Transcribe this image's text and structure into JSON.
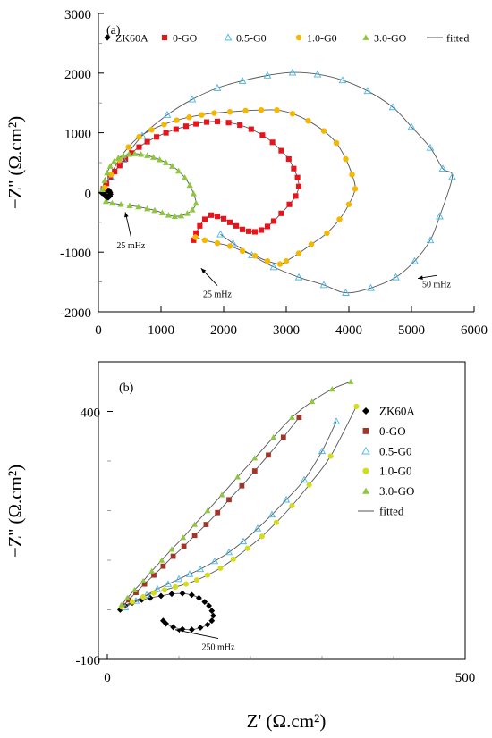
{
  "chart_data": [
    {
      "panel_label": "(a)",
      "type": "scatter",
      "xlabel": "",
      "ylabel": "−Z'' (Ω.cm²)",
      "xlim": [
        0,
        6000
      ],
      "ylim": [
        -2000,
        3000
      ],
      "x_ticks": [
        0,
        1000,
        2000,
        3000,
        4000,
        5000,
        6000
      ],
      "x_tick_labels": [
        "0",
        "1000",
        "2000",
        "3000",
        "4000",
        "5000",
        "6000"
      ],
      "y_ticks": [
        -2000,
        -1000,
        0,
        1000,
        2000,
        3000
      ],
      "y_tick_labels": [
        "-2000",
        "-1000",
        "0",
        "1000",
        "2000",
        "3000"
      ],
      "grid": false,
      "legend_position": "top",
      "legend": [
        {
          "label": "ZK60A",
          "marker": "diamond",
          "color": "#000000"
        },
        {
          "label": "0-GO",
          "marker": "square",
          "color": "#e8141c"
        },
        {
          "label": "0.5-G0",
          "marker": "triangle-open",
          "color": "#49b6e6"
        },
        {
          "label": "1.0-G0",
          "marker": "circle",
          "color": "#f5b800"
        },
        {
          "label": "3.0-GO",
          "marker": "triangle",
          "color": "#8dc63f"
        },
        {
          "label": "fitted",
          "marker": "line",
          "color": "#555555"
        }
      ],
      "annotations": [
        {
          "text": "25 mHz",
          "x": 520,
          "y": -800,
          "arrow_to": [
            430,
            -330
          ]
        },
        {
          "text": "25 mHz",
          "x": 1900,
          "y": -1620,
          "arrow_to": [
            1640,
            -1270
          ]
        },
        {
          "text": "50 mHz",
          "x": 5400,
          "y": -1450,
          "arrow_to": [
            5100,
            -1440
          ]
        }
      ],
      "series": [
        {
          "name": "ZK60A",
          "marker": "diamond",
          "color": "#000000",
          "x": [
            60,
            100,
            140,
            170,
            185,
            190,
            180,
            160,
            140,
            120,
            105,
            90
          ],
          "y": [
            -10,
            20,
            40,
            30,
            0,
            -30,
            -60,
            -80,
            -90,
            -70,
            -40,
            -20
          ]
        },
        {
          "name": "0-GO",
          "marker": "square",
          "color": "#e8141c",
          "x": [
            80,
            130,
            190,
            260,
            340,
            430,
            530,
            650,
            780,
            930,
            1080,
            1240,
            1400,
            1560,
            1730,
            1900,
            2080,
            2260,
            2440,
            2620,
            2780,
            2920,
            3040,
            3120,
            3180,
            3200,
            3150,
            3050,
            2920,
            2800,
            2700,
            2600,
            2500,
            2400,
            2300,
            2200,
            2100,
            2000,
            1900,
            1800,
            1700,
            1620,
            1560,
            1520
          ],
          "y": [
            60,
            150,
            250,
            350,
            450,
            560,
            660,
            760,
            850,
            930,
            1000,
            1060,
            1110,
            1150,
            1180,
            1190,
            1170,
            1130,
            1060,
            960,
            840,
            700,
            560,
            400,
            250,
            100,
            -60,
            -200,
            -350,
            -480,
            -570,
            -630,
            -660,
            -650,
            -620,
            -560,
            -500,
            -440,
            -400,
            -380,
            -450,
            -560,
            -680,
            -800
          ]
        },
        {
          "name": "0.5-G0",
          "marker": "triangle-open",
          "color": "#49b6e6",
          "x": [
            200,
            400,
            700,
            1100,
            1500,
            1900,
            2300,
            2700,
            3100,
            3500,
            3900,
            4300,
            4700,
            5000,
            5300,
            5500,
            5650,
            5450,
            5300,
            5050,
            4750,
            4350,
            3950,
            3600,
            3200,
            2800,
            2450,
            2150,
            1950
          ],
          "y": [
            250,
            550,
            950,
            1300,
            1560,
            1750,
            1870,
            1960,
            2010,
            1980,
            1880,
            1700,
            1430,
            1100,
            750,
            400,
            260,
            -400,
            -800,
            -1150,
            -1420,
            -1600,
            -1680,
            -1550,
            -1420,
            -1250,
            -1050,
            -850,
            -700
          ]
        },
        {
          "name": "1.0-G0",
          "marker": "circle",
          "color": "#f5b800",
          "x": [
            100,
            200,
            330,
            480,
            650,
            850,
            1050,
            1250,
            1450,
            1650,
            1850,
            2100,
            2350,
            2600,
            2850,
            3100,
            3350,
            3600,
            3800,
            3950,
            4050,
            4100,
            4000,
            3850,
            3650,
            3400,
            3200,
            3000,
            2900,
            2700,
            2500,
            2300,
            2100,
            1900,
            1700,
            1550
          ],
          "y": [
            80,
            300,
            550,
            760,
            930,
            1050,
            1140,
            1210,
            1260,
            1300,
            1330,
            1350,
            1370,
            1380,
            1380,
            1320,
            1200,
            1030,
            830,
            560,
            300,
            60,
            -200,
            -450,
            -680,
            -870,
            -1020,
            -1150,
            -1200,
            -1150,
            -1060,
            -980,
            -900,
            -850,
            -800,
            -750
          ]
        },
        {
          "name": "3.0-GO",
          "marker": "triangle",
          "color": "#8dc63f",
          "x": [
            60,
            100,
            140,
            190,
            250,
            320,
            400,
            490,
            580,
            680,
            780,
            880,
            980,
            1080,
            1180,
            1280,
            1380,
            1460,
            1520,
            1560,
            1500,
            1420,
            1320,
            1220,
            1120,
            1020,
            900,
            780,
            640,
            500,
            360,
            220,
            120
          ],
          "y": [
            50,
            200,
            330,
            440,
            520,
            580,
            620,
            640,
            650,
            640,
            620,
            590,
            550,
            500,
            440,
            360,
            250,
            120,
            -20,
            -180,
            -290,
            -350,
            -390,
            -400,
            -380,
            -340,
            -300,
            -270,
            -240,
            -220,
            -200,
            -180,
            -150
          ]
        }
      ]
    },
    {
      "panel_label": "(b)",
      "type": "scatter",
      "xlabel": "Z' (Ω.cm²)",
      "ylabel": "−Z'' (Ω.cm²)",
      "xlim": [
        0,
        500
      ],
      "ylim": [
        -100,
        500
      ],
      "x_ticks": [
        0,
        500
      ],
      "x_tick_labels": [
        "0",
        "500"
      ],
      "y_ticks": [
        -100,
        400
      ],
      "y_tick_labels": [
        "-100",
        "400"
      ],
      "grid": false,
      "legend_position": "right",
      "legend": [
        {
          "label": "ZK60A",
          "marker": "diamond",
          "color": "#000000"
        },
        {
          "label": "0-GO",
          "marker": "square",
          "color": "#a0362a"
        },
        {
          "label": "0.5-G0",
          "marker": "triangle-open",
          "color": "#49b6e6"
        },
        {
          "label": "1.0-G0",
          "marker": "circle",
          "color": "#d4dc1c"
        },
        {
          "label": "3.0-GO",
          "marker": "triangle",
          "color": "#8dc63f"
        },
        {
          "label": "fitted",
          "marker": "line",
          "color": "#555555"
        }
      ],
      "annotations": [
        {
          "text": "250 mHz",
          "x": 155,
          "y": -65,
          "arrow_to": [
            95,
            -40
          ]
        }
      ],
      "series": [
        {
          "name": "ZK60A",
          "marker": "diamond",
          "color": "#000000",
          "x": [
            18,
            25,
            35,
            48,
            60,
            75,
            90,
            105,
            118,
            128,
            136,
            142,
            146,
            148,
            146,
            140,
            130,
            118,
            105,
            92,
            82,
            78
          ],
          "y": [
            0,
            8,
            14,
            20,
            24,
            28,
            32,
            33,
            30,
            24,
            16,
            8,
            -2,
            -12,
            -22,
            -30,
            -36,
            -40,
            -39,
            -35,
            -28,
            -22
          ]
        },
        {
          "name": "0-GO",
          "marker": "square",
          "color": "#a0362a",
          "x": [
            22,
            30,
            40,
            52,
            65,
            78,
            92,
            107,
            122,
            138,
            154,
            170,
            188,
            206,
            225,
            246,
            268
          ],
          "y": [
            8,
            20,
            35,
            52,
            70,
            88,
            108,
            128,
            150,
            172,
            196,
            222,
            250,
            280,
            312,
            348,
            388
          ]
        },
        {
          "name": "0.5-G0",
          "marker": "triangle-open",
          "color": "#49b6e6",
          "x": [
            25,
            40,
            55,
            70,
            85,
            100,
            115,
            130,
            150,
            170,
            190,
            210,
            230,
            250,
            275,
            300,
            320
          ],
          "y": [
            5,
            18,
            30,
            42,
            52,
            62,
            72,
            82,
            98,
            116,
            138,
            164,
            192,
            222,
            262,
            320,
            380
          ]
        },
        {
          "name": "1.0-G0",
          "marker": "circle",
          "color": "#d4dc1c",
          "x": [
            20,
            35,
            50,
            65,
            80,
            95,
            110,
            125,
            140,
            158,
            176,
            196,
            216,
            236,
            258,
            282,
            312,
            348
          ],
          "y": [
            6,
            16,
            26,
            34,
            40,
            46,
            52,
            60,
            70,
            84,
            102,
            124,
            148,
            176,
            210,
            252,
            310,
            410
          ]
        },
        {
          "name": "3.0-GO",
          "marker": "triangle",
          "color": "#8dc63f",
          "x": [
            20,
            28,
            38,
            50,
            62,
            76,
            90,
            106,
            122,
            140,
            160,
            182,
            206,
            232,
            258,
            286,
            314,
            340
          ],
          "y": [
            10,
            24,
            40,
            58,
            78,
            100,
            122,
            146,
            172,
            200,
            232,
            268,
            306,
            348,
            388,
            420,
            445,
            460
          ]
        }
      ]
    }
  ]
}
